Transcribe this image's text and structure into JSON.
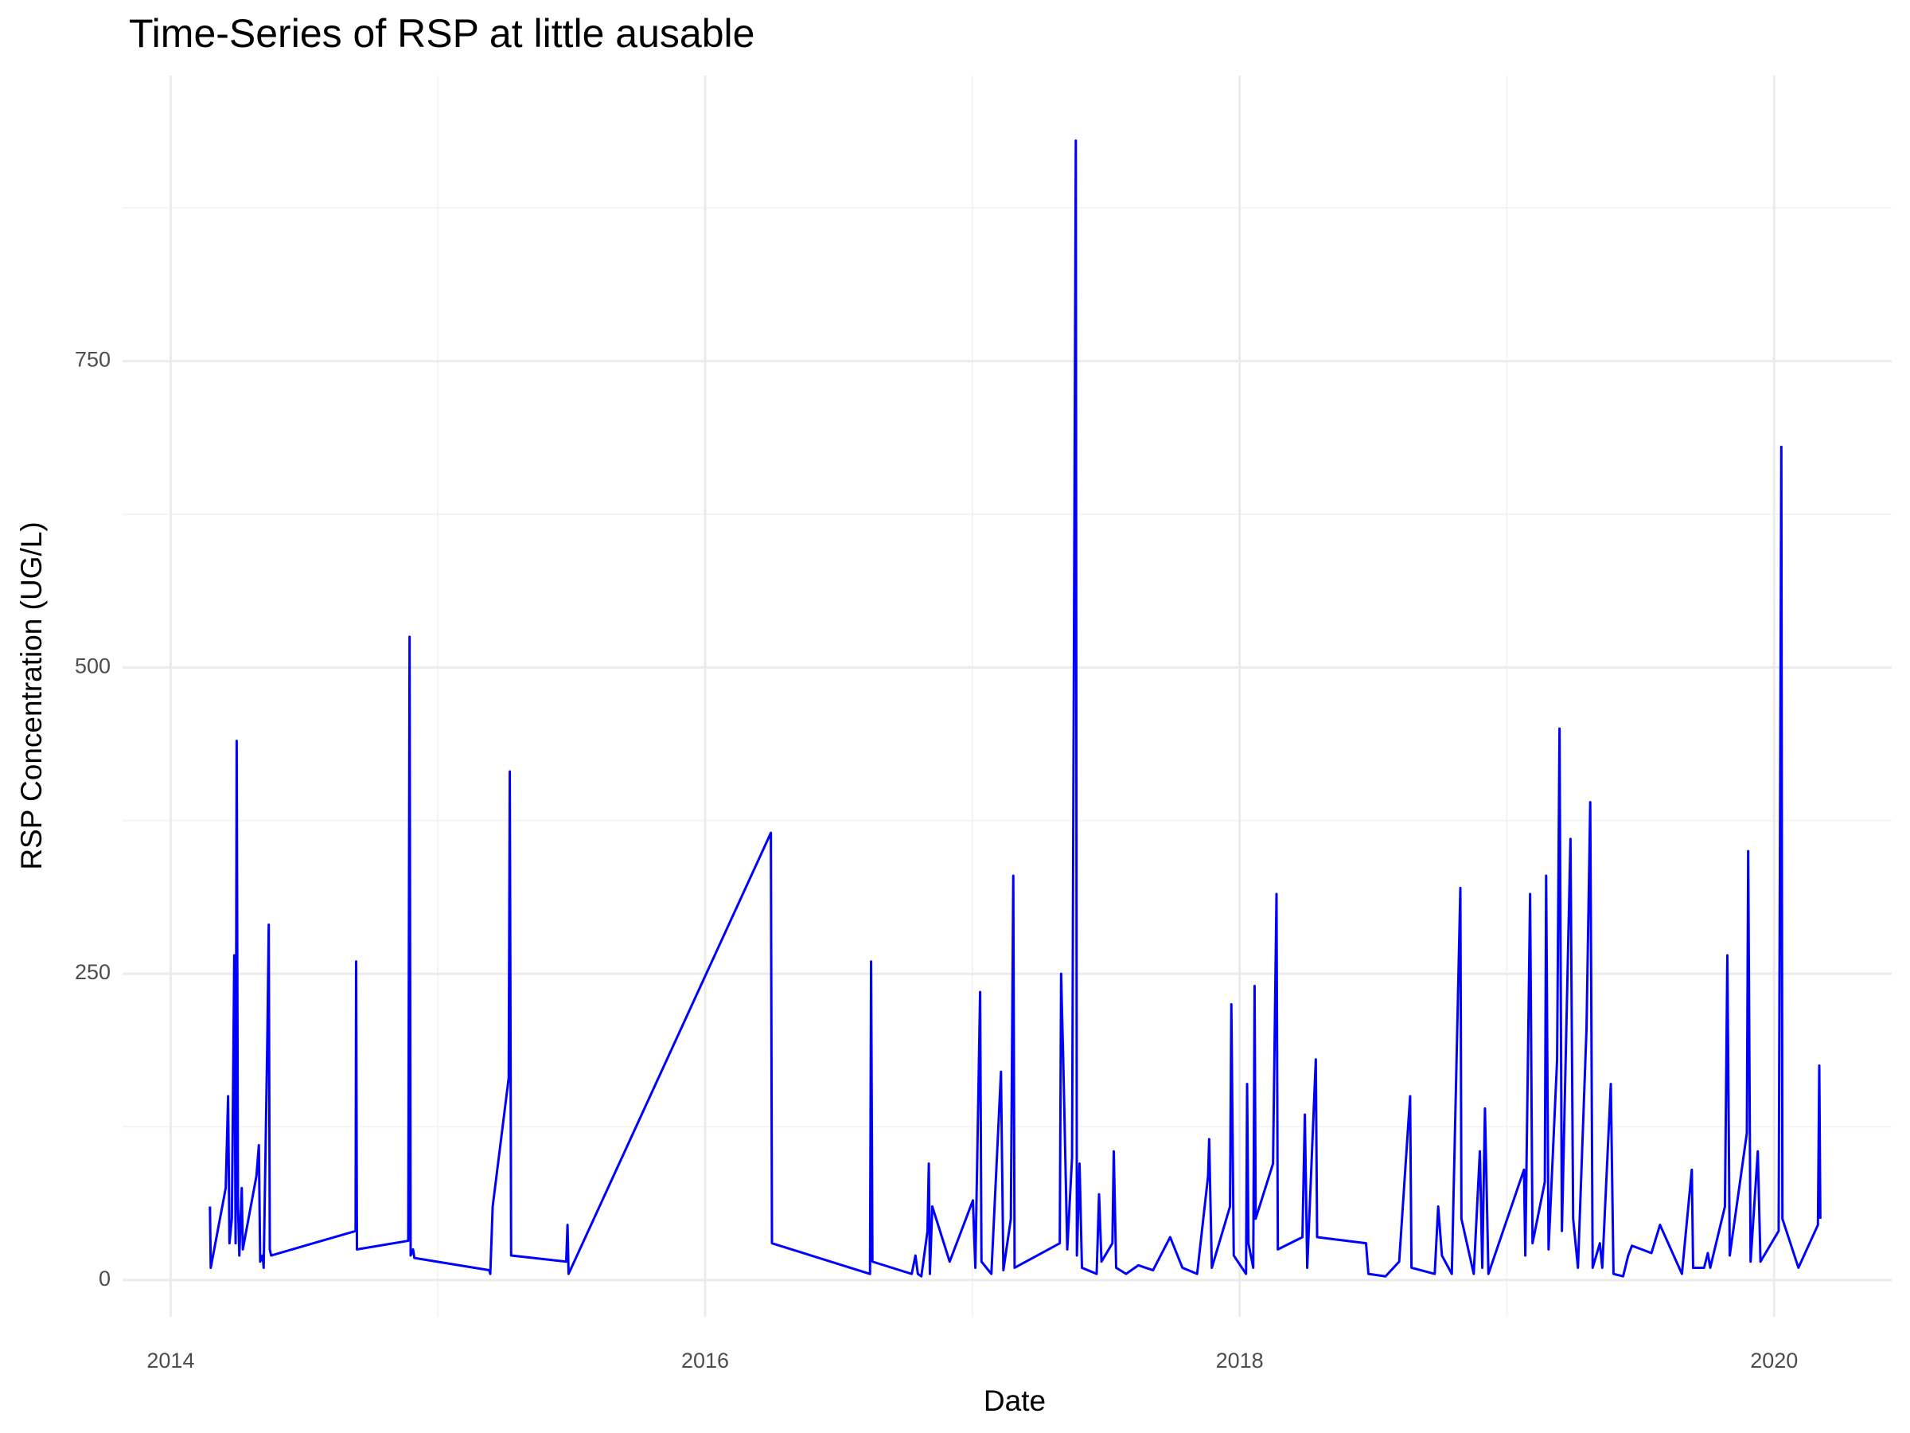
{
  "chart_data": {
    "type": "line",
    "title": "Time-Series of RSP at little ausable",
    "x_label": "Date",
    "y_label": "RSP Concentration (UG/L)",
    "color": "#0000ff",
    "grid": true,
    "xlim": [
      2013.82,
      2020.44
    ],
    "ylim": [
      -30,
      983
    ],
    "xticks": [
      2014,
      2016,
      2018,
      2020
    ],
    "x_minor_ticks": [
      2015,
      2017,
      2019
    ],
    "yticks": [
      0,
      250,
      500,
      750
    ],
    "y_minor_ticks": [
      125,
      375,
      625,
      875
    ],
    "x": [
      2014.147,
      2014.15,
      2014.206,
      2014.215,
      2014.22,
      2014.229,
      2014.238,
      2014.243,
      2014.247,
      2014.252,
      2014.257,
      2014.266,
      2014.27,
      2014.321,
      2014.33,
      2014.335,
      2014.344,
      2014.348,
      2014.362,
      2014.367,
      2014.371,
      2014.376,
      2014.692,
      2014.694,
      2014.697,
      2014.889,
      2014.894,
      2014.898,
      2014.907,
      2014.912,
      2015.192,
      2015.196,
      2015.205,
      2015.265,
      2015.269,
      2015.274,
      2015.48,
      2015.485,
      2015.489,
      2016.246,
      2016.25,
      2016.617,
      2016.621,
      2016.626,
      2016.773,
      2016.787,
      2016.796,
      2016.809,
      2016.832,
      2016.837,
      2016.841,
      2016.85,
      2016.915,
      2017.002,
      2017.011,
      2017.029,
      2017.034,
      2017.071,
      2017.107,
      2017.116,
      2017.144,
      2017.153,
      2017.158,
      2017.327,
      2017.332,
      2017.341,
      2017.355,
      2017.373,
      2017.387,
      2017.391,
      2017.401,
      2017.41,
      2017.465,
      2017.474,
      2017.483,
      2017.524,
      2017.529,
      2017.538,
      2017.575,
      2017.621,
      2017.676,
      2017.74,
      2017.786,
      2017.841,
      2017.882,
      2017.886,
      2017.896,
      2017.964,
      2017.969,
      2017.978,
      2018.024,
      2018.028,
      2018.033,
      2018.051,
      2018.056,
      2018.06,
      2018.125,
      2018.138,
      2018.143,
      2018.235,
      2018.244,
      2018.253,
      2018.285,
      2018.29,
      2018.473,
      2018.482,
      2018.546,
      2018.597,
      2018.638,
      2018.643,
      2018.73,
      2018.743,
      2018.757,
      2018.794,
      2018.826,
      2018.83,
      2018.876,
      2018.899,
      2018.908,
      2018.918,
      2018.931,
      2019.064,
      2019.069,
      2019.087,
      2019.096,
      2019.142,
      2019.147,
      2019.156,
      2019.188,
      2019.197,
      2019.206,
      2019.238,
      2019.248,
      2019.266,
      2019.298,
      2019.312,
      2019.321,
      2019.348,
      2019.357,
      2019.389,
      2019.399,
      2019.435,
      2019.454,
      2019.468,
      2019.541,
      2019.573,
      2019.655,
      2019.692,
      2019.697,
      2019.738,
      2019.752,
      2019.761,
      2019.816,
      2019.825,
      2019.834,
      2019.898,
      2019.903,
      2019.912,
      2019.939,
      2019.949,
      2020.017,
      2020.027,
      2020.031,
      2020.091,
      2020.164,
      2020.169,
      2020.173
    ],
    "values": [
      60,
      10,
      75,
      150,
      30,
      50,
      265,
      30,
      440,
      60,
      20,
      75,
      25,
      85,
      110,
      15,
      20,
      10,
      200,
      290,
      25,
      20,
      40,
      260,
      25,
      32,
      525,
      20,
      25,
      18,
      8,
      5,
      60,
      165,
      415,
      20,
      15,
      45,
      5,
      365,
      30,
      5,
      260,
      15,
      5,
      20,
      5,
      3,
      40,
      95,
      5,
      60,
      15,
      65,
      10,
      235,
      15,
      5,
      170,
      8,
      50,
      330,
      10,
      30,
      250,
      170,
      25,
      100,
      930,
      20,
      95,
      10,
      5,
      70,
      15,
      30,
      105,
      10,
      5,
      12,
      8,
      35,
      10,
      5,
      85,
      115,
      10,
      60,
      225,
      20,
      5,
      160,
      30,
      10,
      240,
      50,
      95,
      315,
      25,
      35,
      135,
      10,
      180,
      35,
      30,
      5,
      3,
      15,
      150,
      10,
      5,
      60,
      20,
      5,
      320,
      50,
      5,
      105,
      10,
      140,
      5,
      90,
      20,
      315,
      30,
      80,
      330,
      25,
      180,
      450,
      40,
      360,
      50,
      10,
      205,
      390,
      10,
      30,
      10,
      160,
      5,
      3,
      20,
      28,
      22,
      45,
      5,
      90,
      10,
      10,
      22,
      10,
      60,
      265,
      20,
      120,
      350,
      15,
      105,
      15,
      40,
      680,
      50,
      10,
      45,
      175,
      50
    ]
  }
}
